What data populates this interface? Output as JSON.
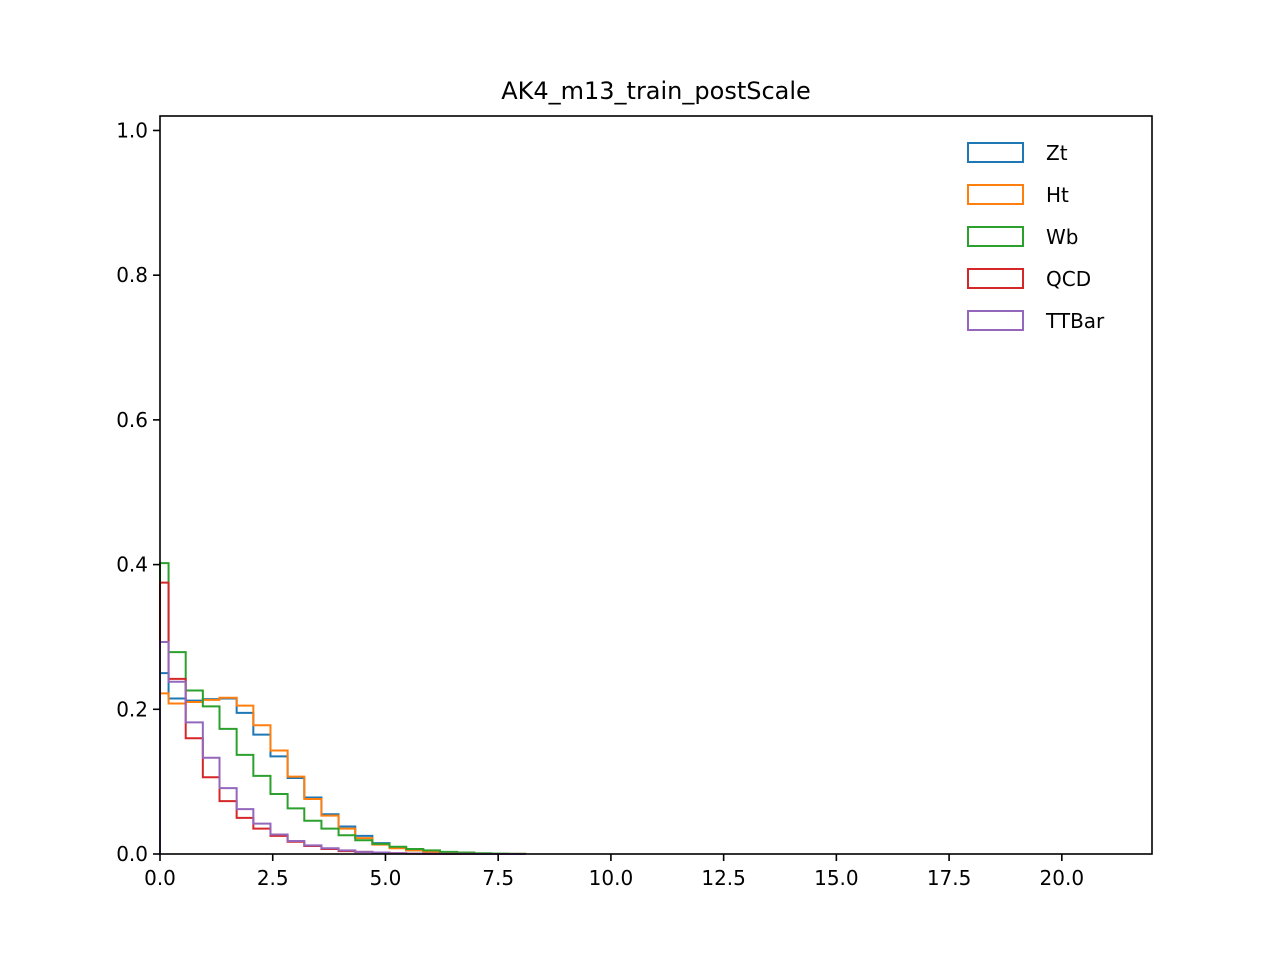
{
  "chart_data": {
    "type": "step-histogram",
    "title": "AK4_m13_train_postScale",
    "xlabel": "",
    "ylabel": "",
    "xlim": [
      0,
      22
    ],
    "ylim": [
      0,
      1.02
    ],
    "x_ticks": [
      0.0,
      2.5,
      5.0,
      7.5,
      10.0,
      12.5,
      15.0,
      17.5,
      20.0
    ],
    "x_tick_labels": [
      "0.0",
      "2.5",
      "5.0",
      "7.5",
      "10.0",
      "12.5",
      "15.0",
      "17.5",
      "20.0"
    ],
    "y_ticks": [
      0.0,
      0.2,
      0.4,
      0.6,
      0.8,
      1.0
    ],
    "y_tick_labels": [
      "0.0",
      "0.2",
      "0.4",
      "0.6",
      "0.8",
      "1.0"
    ],
    "grid": false,
    "legend_position": "top-right",
    "bin_edges": [
      0,
      0.19,
      0.57,
      0.95,
      1.32,
      1.7,
      2.07,
      2.45,
      2.83,
      3.2,
      3.58,
      3.96,
      4.33,
      4.71,
      5.09,
      5.46,
      5.84,
      6.21,
      6.59,
      6.97,
      7.34,
      7.72,
      8.1
    ],
    "series": [
      {
        "name": "Zt",
        "color": "#1f77b4",
        "values": [
          0.25,
          0.215,
          0.212,
          0.214,
          0.215,
          0.195,
          0.165,
          0.135,
          0.105,
          0.078,
          0.055,
          0.038,
          0.025,
          0.015,
          0.009,
          0.005,
          0.003,
          0.002,
          0.001,
          0.0005,
          0.0002,
          0.0001
        ]
      },
      {
        "name": "Ht",
        "color": "#ff7f0e",
        "values": [
          0.222,
          0.208,
          0.21,
          0.213,
          0.216,
          0.205,
          0.178,
          0.143,
          0.107,
          0.076,
          0.053,
          0.035,
          0.022,
          0.013,
          0.008,
          0.005,
          0.003,
          0.002,
          0.001,
          0.0005,
          0.0002,
          0.0001
        ]
      },
      {
        "name": "Wb",
        "color": "#2ca02c",
        "values": [
          0.402,
          0.279,
          0.226,
          0.204,
          0.173,
          0.137,
          0.108,
          0.083,
          0.063,
          0.046,
          0.035,
          0.026,
          0.019,
          0.014,
          0.01,
          0.007,
          0.005,
          0.003,
          0.002,
          0.001,
          0.0005,
          0.0002
        ]
      },
      {
        "name": "QCD",
        "color": "#d62728",
        "values": [
          0.375,
          0.242,
          0.16,
          0.106,
          0.073,
          0.05,
          0.035,
          0.025,
          0.017,
          0.011,
          0.007,
          0.004,
          0.003,
          0.002,
          0.001,
          0.0005,
          0.0003,
          0.0002,
          0.0001,
          0,
          0,
          0
        ]
      },
      {
        "name": "TTBar",
        "color": "#9467bd",
        "values": [
          0.293,
          0.238,
          0.182,
          0.133,
          0.091,
          0.062,
          0.042,
          0.027,
          0.018,
          0.012,
          0.008,
          0.005,
          0.003,
          0.002,
          0.001,
          0.0006,
          0.0003,
          0.0002,
          0.0001,
          0,
          0,
          0
        ]
      }
    ]
  }
}
